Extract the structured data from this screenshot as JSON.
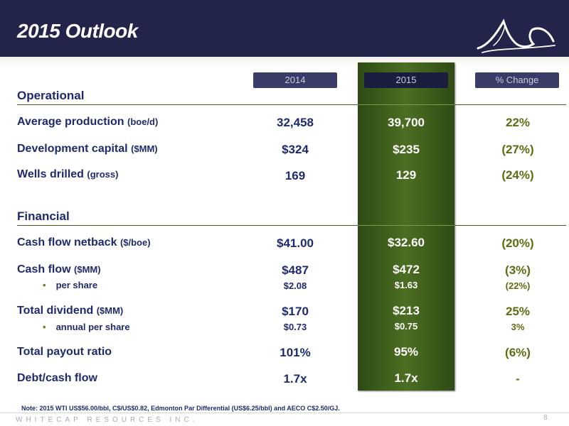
{
  "slide": {
    "title": "2015 Outlook",
    "company": "WHITECAP RESOURCES INC.",
    "page": "8",
    "note": "Note:  2015 WTI US$56.00/bbl, C$/US$0.82, Edmonton Par Differential (US$6.25/bbl) and AECO C$2.50/GJ."
  },
  "columns": {
    "y2014": "2014",
    "y2015": "2015",
    "change": "% Change"
  },
  "sections": {
    "operational": "Operational",
    "financial": "Financial"
  },
  "rows": {
    "avg_production": {
      "label": "Average production",
      "unit": "(boe/d)",
      "v2014": "32,458",
      "v2015": "39,700",
      "change": "22%"
    },
    "dev_capital": {
      "label": "Development capital",
      "unit": "($MM)",
      "v2014": "$324",
      "v2015": "$235",
      "change": "(27%)"
    },
    "wells_drilled": {
      "label": "Wells drilled",
      "unit": "(gross)",
      "v2014": "169",
      "v2015": "129",
      "change": "(24%)"
    },
    "cf_netback": {
      "label": "Cash flow netback",
      "unit": "($/boe)",
      "v2014": "$41.00",
      "v2015": "$32.60",
      "change": "(20%)"
    },
    "cash_flow": {
      "label": "Cash flow",
      "unit": "($MM)",
      "v2014": "$487",
      "v2015": "$472",
      "change": "(3%)"
    },
    "cf_per_share": {
      "bullet": "•",
      "label": "per share",
      "v2014": "$2.08",
      "v2015": "$1.63",
      "change": "(22%)"
    },
    "total_dividend": {
      "label": "Total dividend",
      "unit": "($MM)",
      "v2014": "$170",
      "v2015": "$213",
      "change": "25%"
    },
    "div_per_share": {
      "bullet": "•",
      "label": "annual per share",
      "v2014": "$0.73",
      "v2015": "$0.75",
      "change": "3%"
    },
    "payout_ratio": {
      "label": "Total payout ratio",
      "v2014": "101%",
      "v2015": "95%",
      "change": "(6%)"
    },
    "debt_cf": {
      "label": "Debt/cash flow",
      "v2014": "1.7x",
      "v2015": "1.7x",
      "change": "-"
    }
  }
}
